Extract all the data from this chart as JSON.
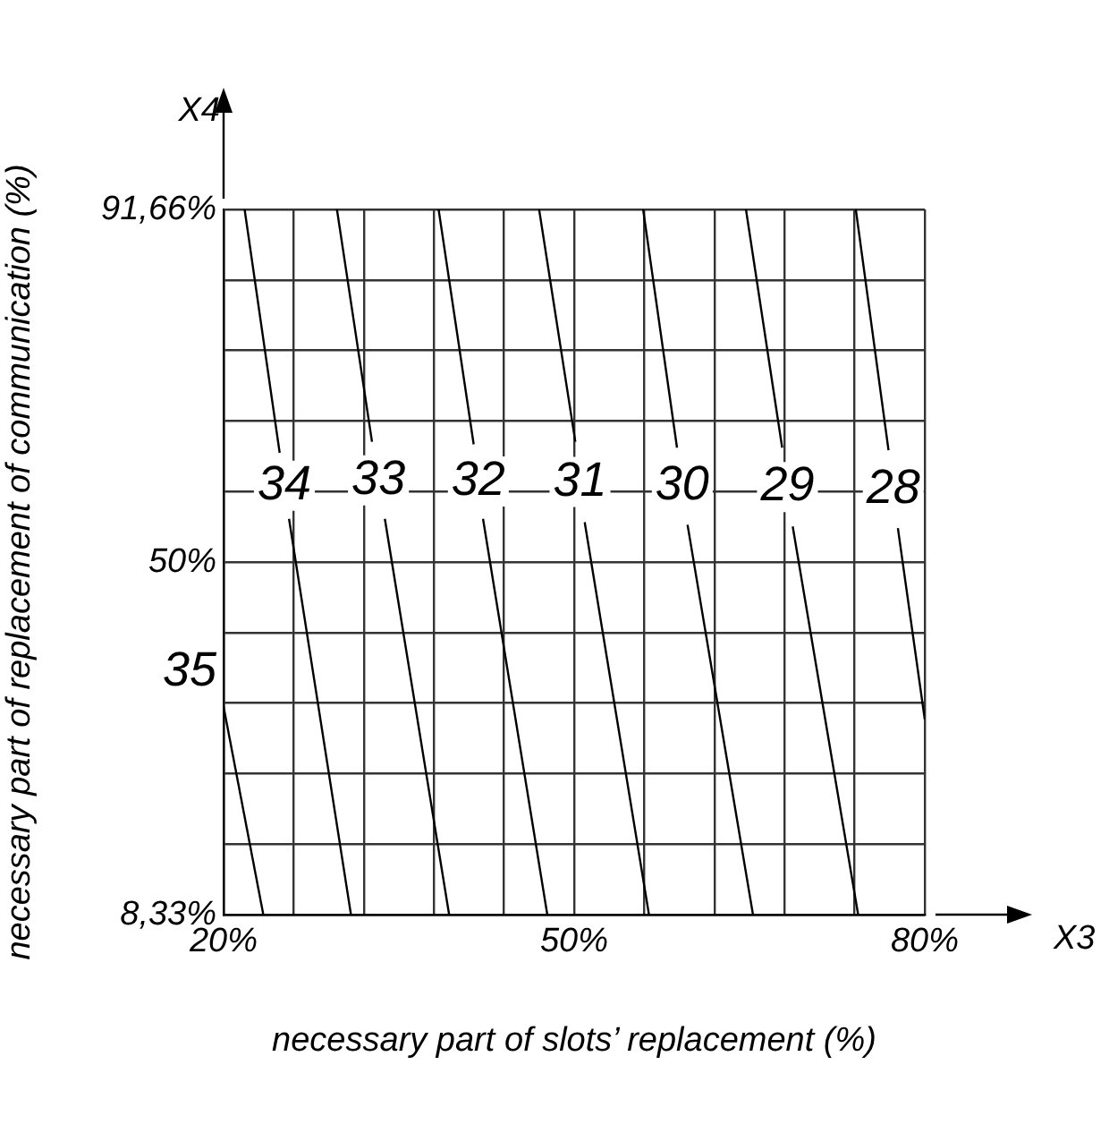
{
  "chart_data": {
    "type": "line",
    "xlabel": "necessary part of slots’ replacement (%)",
    "ylabel": "necessary part of replacement of communication (%)",
    "annotations": [
      "X4",
      "X3"
    ],
    "xlim": [
      20,
      80
    ],
    "ylim": [
      8.33,
      91.66
    ],
    "xticks": [
      {
        "value": 20,
        "label": "20%"
      },
      {
        "value": 26,
        "label": null
      },
      {
        "value": 32,
        "label": null
      },
      {
        "value": 38,
        "label": null
      },
      {
        "value": 44,
        "label": null
      },
      {
        "value": 50,
        "label": "50%"
      },
      {
        "value": 56,
        "label": null
      },
      {
        "value": 62,
        "label": null
      },
      {
        "value": 68,
        "label": null
      },
      {
        "value": 74,
        "label": null
      },
      {
        "value": 80,
        "label": "80%"
      }
    ],
    "yticks": [
      {
        "value": 8.33,
        "label": "8,33%"
      },
      {
        "value": 16.67,
        "label": null
      },
      {
        "value": 25,
        "label": null
      },
      {
        "value": 33.33,
        "label": null
      },
      {
        "value": 41.67,
        "label": null
      },
      {
        "value": 50,
        "label": "50%"
      },
      {
        "value": 58.33,
        "label": null
      },
      {
        "value": 66.67,
        "label": null
      },
      {
        "value": 75,
        "label": null
      },
      {
        "value": 83.33,
        "label": null
      },
      {
        "value": 91.66,
        "label": "91,66%"
      }
    ],
    "grid": true,
    "legend": false,
    "marker": "none",
    "line_style": "solid",
    "series": [
      {
        "name": "35",
        "color": "#000000",
        "x": [
          20,
          23.4
        ],
        "values": [
          32.9,
          8.33
        ]
      },
      {
        "name": "34",
        "color": "#000000",
        "x": [
          21.8,
          24.8,
          25.2,
          25.6,
          30.9
        ],
        "values": [
          91.66,
          62.9,
          null,
          55.1,
          8.33
        ]
      },
      {
        "name": "33",
        "color": "#000000",
        "x": [
          29.7,
          32.7,
          33.3,
          33.8,
          39.3
        ],
        "values": [
          91.66,
          64.2,
          null,
          55.1,
          8.33
        ]
      },
      {
        "name": "32",
        "color": "#000000",
        "x": [
          38.4,
          41.4,
          41.8,
          42.2,
          47.7
        ],
        "values": [
          91.66,
          63.9,
          null,
          55.1,
          8.33
        ]
      },
      {
        "name": "31",
        "color": "#000000",
        "x": [
          47,
          50.1,
          50.5,
          50.9,
          56.4
        ],
        "values": [
          91.66,
          64.2,
          null,
          54.7,
          8.33
        ]
      },
      {
        "name": "30",
        "color": "#000000",
        "x": [
          55.9,
          58.8,
          59.2,
          59.7,
          65.3
        ],
        "values": [
          91.66,
          63.5,
          null,
          54.4,
          8.33
        ]
      },
      {
        "name": "29",
        "color": "#000000",
        "x": [
          64.7,
          67.8,
          68.3,
          68.7,
          74.3
        ],
        "values": [
          91.66,
          63.5,
          null,
          54.2,
          8.33
        ]
      },
      {
        "name": "28",
        "color": "#000000",
        "x": [
          74.1,
          76.9,
          77.3,
          77.7,
          80
        ],
        "values": [
          91.66,
          63.2,
          null,
          54,
          31.4
        ]
      }
    ]
  }
}
